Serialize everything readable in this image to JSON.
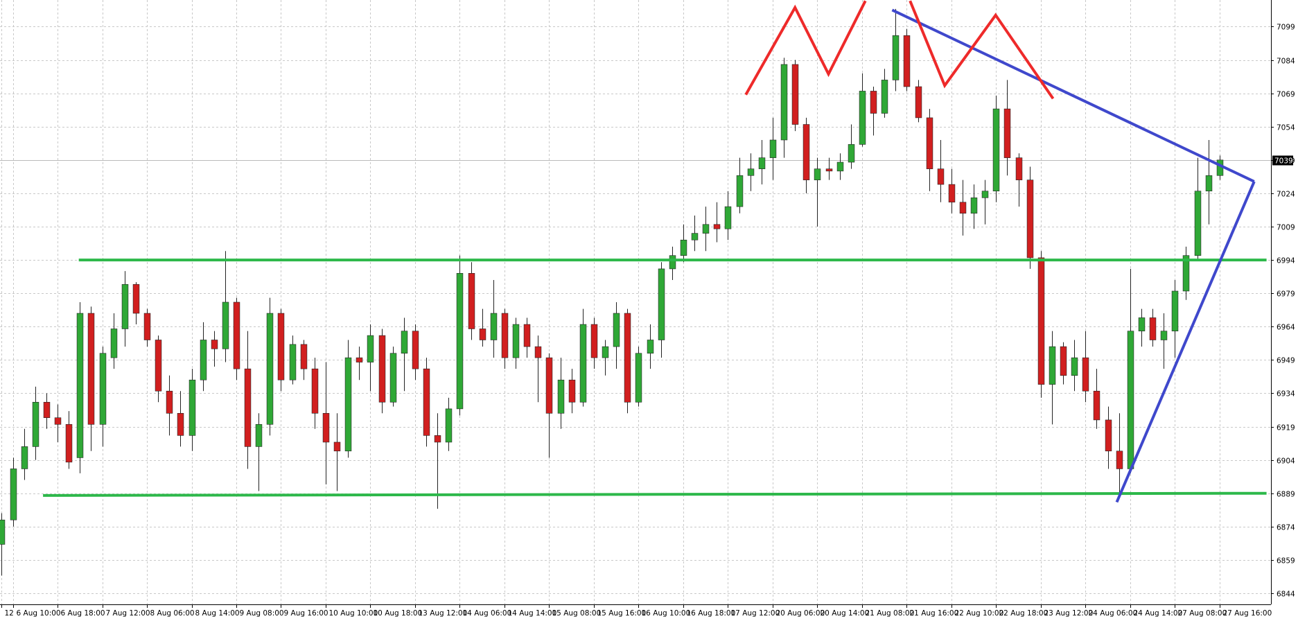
{
  "chart_data": {
    "type": "candlestick",
    "categories": [
      "12",
      "6 Aug 10:00",
      null,
      null,
      null,
      "6 Aug 18:00",
      null,
      null,
      null,
      "7 Aug 12:00",
      null,
      null,
      null,
      "8 Aug 06:00",
      null,
      null,
      null,
      "8 Aug 14:00",
      null,
      null,
      null,
      "9 Aug 08:00",
      null,
      null,
      null,
      "9 Aug 16:00",
      null,
      null,
      null,
      "10 Aug 10:00",
      null,
      null,
      null,
      "10 Aug 18:00",
      null,
      null,
      null,
      "13 Aug 12:00",
      null,
      null,
      null,
      "14 Aug 06:00",
      null,
      null,
      null,
      "14 Aug 14:00",
      null,
      null,
      null,
      "15 Aug 08:00",
      null,
      null,
      null,
      "15 Aug 16:00",
      null,
      null,
      null,
      "16 Aug 10:00",
      null,
      null,
      null,
      "16 Aug 18:00",
      null,
      null,
      null,
      "17 Aug 12:00",
      null,
      null,
      null,
      "20 Aug 06:00",
      null,
      null,
      null,
      "20 Aug 14:00",
      null,
      null,
      null,
      "21 Aug 08:00",
      null,
      null,
      null,
      "21 Aug 16:00",
      null,
      null,
      null,
      "22 Aug 10:00",
      null,
      null,
      null,
      "22 Aug 18:00",
      null,
      null,
      null,
      "23 Aug 12:00",
      null,
      null,
      null,
      "24 Aug 06:00",
      null,
      null,
      null,
      "24 Aug 14:00",
      null,
      null,
      null,
      "27 Aug 08:00",
      null,
      null,
      null,
      "27 Aug 16:00"
    ],
    "open": [
      6866,
      6877,
      6900,
      6910,
      6930,
      6923,
      6920,
      6905,
      6970,
      6920,
      6950,
      6963,
      6983,
      6970,
      6958,
      6935,
      6925,
      6915,
      6940,
      6958,
      6954,
      6975,
      6945,
      6910,
      6920,
      6970,
      6940,
      6956,
      6945,
      6925,
      6912,
      6908,
      6950,
      6948,
      6960,
      6930,
      6952,
      6962,
      6945,
      6915,
      6912,
      6927,
      6988,
      6963,
      6958,
      6970,
      6950,
      6965,
      6955,
      6950,
      6925,
      6940,
      6930,
      6965,
      6950,
      6955,
      6970,
      6930,
      6952,
      6958,
      6990,
      6996,
      7003,
      7006,
      7010,
      7008,
      7018,
      7032,
      7035,
      7040,
      7048,
      7082,
      7055,
      7030,
      7035,
      7034,
      7038,
      7046,
      7070,
      7060,
      7075,
      7095,
      7072,
      7058,
      7035,
      7028,
      7020,
      7015,
      7022,
      7025,
      7062,
      7040,
      7030,
      6995,
      6938,
      6955,
      6942,
      6950,
      6935,
      6922,
      6908,
      6900,
      6962,
      6968,
      6958,
      6962,
      6980,
      6996,
      7025,
      7032
    ],
    "high": [
      6880,
      6905,
      6918,
      6937,
      6934,
      6929,
      6926,
      6975,
      6973,
      6955,
      6970,
      6989,
      6984,
      6972,
      6960,
      6942,
      6935,
      6945,
      6966,
      6962,
      6998,
      6977,
      6962,
      6925,
      6977,
      6972,
      6960,
      6958,
      6950,
      6948,
      6925,
      6958,
      6955,
      6965,
      6963,
      6955,
      6968,
      6965,
      6950,
      6925,
      6932,
      6996,
      6993,
      6972,
      6985,
      6972,
      6968,
      6968,
      6960,
      6952,
      6950,
      6945,
      6972,
      6968,
      6958,
      6975,
      6972,
      6955,
      6965,
      6993,
      7000,
      7010,
      7014,
      7018,
      7020,
      7025,
      7040,
      7042,
      7048,
      7058,
      7085,
      7084,
      7058,
      7040,
      7040,
      7042,
      7055,
      7078,
      7072,
      7080,
      7107,
      7098,
      7075,
      7062,
      7048,
      7035,
      7030,
      7028,
      7030,
      7068,
      7075,
      7042,
      7036,
      6998,
      6962,
      6957,
      6958,
      6962,
      6945,
      6928,
      6925,
      6990,
      6972,
      6972,
      6970,
      6985,
      7000,
      7040,
      7048,
      7041
    ],
    "low": [
      6852,
      6874,
      6895,
      6904,
      6918,
      6912,
      6900,
      6898,
      6908,
      6910,
      6945,
      6955,
      6965,
      6955,
      6930,
      6915,
      6910,
      6908,
      6935,
      6946,
      6948,
      6940,
      6900,
      6890,
      6915,
      6935,
      6938,
      6940,
      6918,
      6893,
      6890,
      6905,
      6940,
      6935,
      6925,
      6928,
      6935,
      6940,
      6910,
      6882,
      6908,
      6924,
      6958,
      6955,
      6950,
      6945,
      6945,
      6950,
      6930,
      6905,
      6918,
      6925,
      6928,
      6945,
      6942,
      6945,
      6925,
      6928,
      6945,
      6950,
      6985,
      6993,
      6998,
      6998,
      7002,
      7003,
      7015,
      7025,
      7028,
      7030,
      7040,
      7052,
      7024,
      7009,
      7030,
      7030,
      7035,
      7045,
      7050,
      7058,
      7070,
      7070,
      7056,
      7025,
      7020,
      7015,
      7005,
      7008,
      7010,
      7020,
      7032,
      7018,
      6990,
      6932,
      6920,
      6938,
      6935,
      6930,
      6918,
      6900,
      6887,
      6898,
      6955,
      6955,
      6945,
      6950,
      6976,
      6994,
      7010,
      7030
    ],
    "close": [
      6877,
      6900,
      6910,
      6930,
      6923,
      6920,
      6903,
      6970,
      6920,
      6952,
      6963,
      6983,
      6970,
      6958,
      6935,
      6925,
      6915,
      6940,
      6958,
      6954,
      6975,
      6945,
      6910,
      6920,
      6970,
      6940,
      6956,
      6945,
      6925,
      6912,
      6908,
      6950,
      6948,
      6960,
      6930,
      6952,
      6962,
      6945,
      6915,
      6912,
      6927,
      6988,
      6963,
      6958,
      6970,
      6950,
      6965,
      6955,
      6950,
      6925,
      6940,
      6930,
      6965,
      6950,
      6955,
      6970,
      6930,
      6952,
      6958,
      6990,
      6996,
      7003,
      7006,
      7010,
      7008,
      7018,
      7032,
      7035,
      7040,
      7048,
      7082,
      7055,
      7030,
      7035,
      7034,
      7038,
      7046,
      7070,
      7060,
      7075,
      7095,
      7072,
      7058,
      7035,
      7028,
      7020,
      7015,
      7022,
      7025,
      7062,
      7040,
      7030,
      6995,
      6938,
      6955,
      6942,
      6950,
      6935,
      6922,
      6908,
      6900,
      6962,
      6968,
      6958,
      6962,
      6980,
      6996,
      7025,
      7032,
      7039
    ],
    "up_color": "#2fa836",
    "down_color": "#d11f1f",
    "xlim": [
      -0.15,
      113.6
    ],
    "ylim": [
      6839,
      7111
    ],
    "yticks": [
      7099,
      7084,
      7069,
      7054,
      7039,
      7024,
      7009,
      6994,
      6979,
      6964,
      6949,
      6934,
      6919,
      6904,
      6889,
      6874,
      6859,
      6844
    ],
    "grid": true,
    "last_price": 7039,
    "trendlines": [
      {
        "color": "#2db84a",
        "x": [
          6.9,
          113.2
        ],
        "y": [
          6994,
          6994
        ]
      },
      {
        "color": "#2db84a",
        "x": [
          3.7,
          113.2
        ],
        "y": [
          6888,
          6889
        ]
      },
      {
        "color": "#3f48cc",
        "x": [
          79.7,
          112.1
        ],
        "y": [
          7106.5,
          7029.3
        ]
      },
      {
        "color": "#3f48cc",
        "x": [
          99.8,
          112.1
        ],
        "y": [
          6885,
          7029.3
        ]
      },
      {
        "color": "#ee2a2a",
        "x": [
          66.6,
          71.0,
          74.0,
          77.3
        ],
        "y": [
          7068.4,
          7107.6,
          7077.7,
          7110.6
        ]
      },
      {
        "color": "#ee2a2a",
        "x": [
          81.3,
          84.4,
          88.96,
          94.1
        ],
        "y": [
          7110.6,
          7072.5,
          7104.2,
          7066.6
        ]
      }
    ]
  }
}
